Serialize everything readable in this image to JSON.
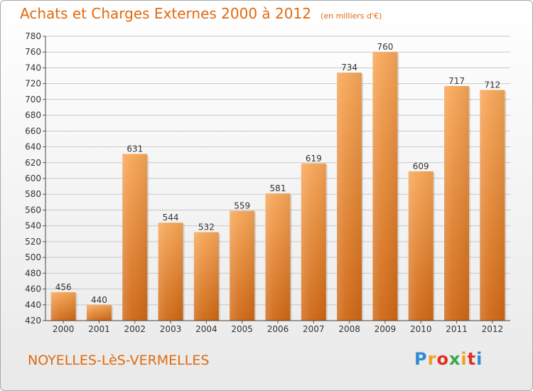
{
  "chart_data": {
    "type": "bar",
    "title": "Achats et Charges Externes 2000 à 2012",
    "subtitle": "(en milliers d'€)",
    "categories": [
      "2000",
      "2001",
      "2002",
      "2003",
      "2004",
      "2005",
      "2006",
      "2007",
      "2008",
      "2009",
      "2010",
      "2011",
      "2012"
    ],
    "values": [
      456,
      440,
      631,
      544,
      532,
      559,
      581,
      619,
      734,
      760,
      609,
      717,
      712
    ],
    "ylim": [
      420,
      780
    ],
    "yticks": [
      420,
      440,
      460,
      480,
      500,
      520,
      540,
      560,
      580,
      600,
      620,
      640,
      660,
      680,
      700,
      720,
      740,
      760,
      780
    ],
    "grid": true,
    "xlabel": "",
    "ylabel": ""
  },
  "footer": {
    "commune": "NOYELLES-LèS-VERMELLES",
    "logo_letters": [
      "P",
      "r",
      "o",
      "x",
      "i",
      "t",
      "i"
    ],
    "logo_colors": [
      "#2e8bd6",
      "#f0a020",
      "#e0301e",
      "#3aa64a",
      "#f0a020",
      "#e0301e",
      "#2e8bd6"
    ]
  },
  "colors": {
    "title": "#e06a10",
    "bar_top": "#f6a657",
    "bar_bottom": "#cf6714",
    "grid": "#c8c8c8"
  }
}
